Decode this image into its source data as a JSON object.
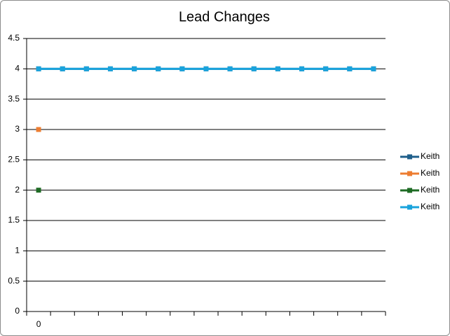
{
  "chart_data": {
    "type": "line",
    "title": "Lead Changes",
    "categories": [
      "0",
      null,
      null,
      null,
      null,
      null,
      null,
      null,
      null,
      null,
      null,
      null,
      null,
      null,
      null
    ],
    "series": [
      {
        "name": "Keith",
        "color": "#1f5f8b",
        "values": [
          4,
          4,
          4,
          4,
          4,
          4,
          4,
          4,
          4,
          4,
          4,
          4,
          4,
          4,
          4
        ]
      },
      {
        "name": "Keith",
        "color": "#ed7d31",
        "values": [
          3,
          null,
          null,
          null,
          null,
          null,
          null,
          null,
          null,
          null,
          null,
          null,
          null,
          null,
          null
        ]
      },
      {
        "name": "Keith",
        "color": "#1e6b24",
        "values": [
          2,
          null,
          null,
          null,
          null,
          null,
          null,
          null,
          null,
          null,
          null,
          null,
          null,
          null,
          null
        ]
      },
      {
        "name": "Keith",
        "color": "#1aa3dc",
        "values": [
          4,
          4,
          4,
          4,
          4,
          4,
          4,
          4,
          4,
          4,
          4,
          4,
          4,
          4,
          4
        ]
      }
    ],
    "ylim": [
      0,
      4.5
    ],
    "yticks": [
      0,
      0.5,
      1,
      1.5,
      2,
      2.5,
      3,
      3.5,
      4,
      4.5
    ],
    "grid": true,
    "legend": "right"
  }
}
